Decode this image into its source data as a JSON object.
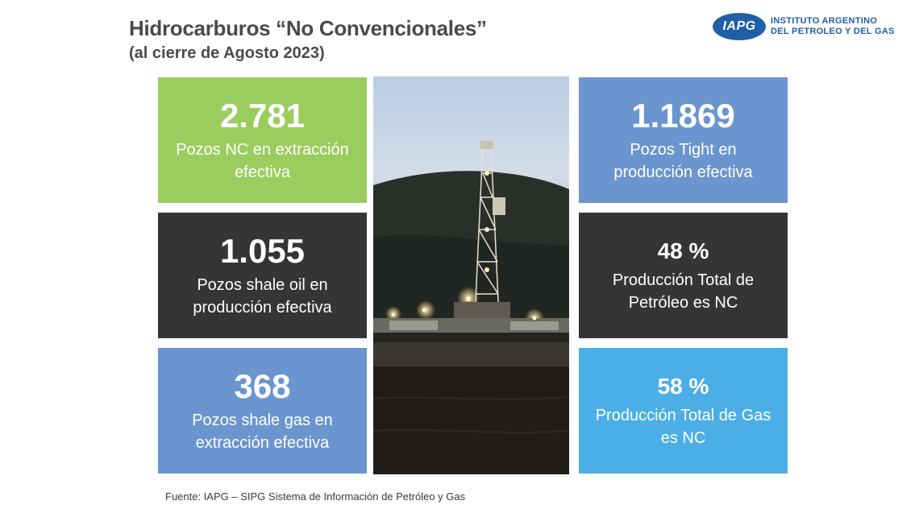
{
  "header": {
    "title": "Hidrocarburos “No Convencionales”",
    "subtitle": "(al cierre de Agosto 2023)"
  },
  "logo": {
    "mark": "IAPG",
    "line1": "INSTITUTO ARGENTINO",
    "line2": "DEL PETROLEO Y DEL GAS",
    "color": "#1f5fa8"
  },
  "cards": [
    {
      "value": "2.781",
      "desc_line1": "Pozos NC en extracción",
      "desc_line2": "efectiva",
      "color": "#9acd5e"
    },
    {
      "value": "1.055",
      "desc_line1": "Pozos shale oil en",
      "desc_line2": "producción efectiva",
      "color": "#353535"
    },
    {
      "value": "368",
      "desc_line1": "Pozos shale gas en",
      "desc_line2": "extracción efectiva",
      "color": "#6a95cf"
    },
    {
      "value": "1.1869",
      "desc_line1": "Pozos Tight en",
      "desc_line2": "producción efectiva",
      "color": "#6a95cf"
    },
    {
      "value": "48 %",
      "desc_line1": "Producción Total de",
      "desc_line2": "Petróleo es NC",
      "color": "#353535"
    },
    {
      "value": "58 %",
      "desc_line1": "Producción Total de Gas",
      "desc_line2": "es NC",
      "color": "#4baee6"
    }
  ],
  "photo": {
    "icon": "drilling-rig-photo"
  },
  "footer": {
    "source": "Fuente: IAPG – SIPG Sistema de Información de Petróleo y Gas"
  }
}
